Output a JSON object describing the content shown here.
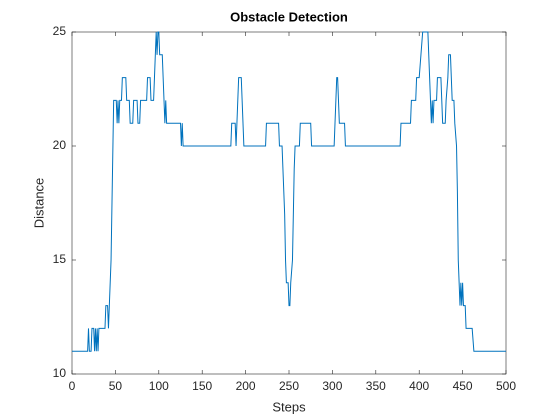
{
  "chart_data": {
    "type": "line",
    "title": "Obstacle Detection",
    "xlabel": "Steps",
    "ylabel": "Distance",
    "xlim": [
      0,
      500
    ],
    "ylim": [
      10,
      25
    ],
    "xticks": [
      0,
      50,
      100,
      150,
      200,
      250,
      300,
      350,
      400,
      450,
      500
    ],
    "yticks": [
      10,
      15,
      20,
      25
    ],
    "series": [
      {
        "color": "#0072bd",
        "x": [
          0,
          18,
          19,
          20,
          22,
          23,
          25,
          26,
          27,
          28,
          29,
          30,
          31,
          38,
          39,
          41,
          42,
          43,
          44,
          45,
          48,
          51,
          52,
          53,
          54,
          55,
          57,
          58,
          62,
          63,
          66,
          67,
          70,
          71,
          75,
          76,
          78,
          79,
          86,
          87,
          90,
          91,
          94,
          95,
          96,
          97,
          98,
          99,
          100,
          101,
          104,
          105,
          106,
          107,
          108,
          109,
          125,
          126,
          127,
          128,
          183,
          184,
          188,
          189,
          190,
          191,
          192,
          195,
          196,
          197,
          198,
          223,
          224,
          238,
          239,
          242,
          243,
          245,
          246,
          247,
          249,
          250,
          251,
          252,
          254,
          255,
          256,
          257,
          262,
          263,
          275,
          276,
          302,
          303,
          304,
          305,
          306,
          307,
          308,
          314,
          315,
          378,
          379,
          390,
          391,
          396,
          397,
          400,
          402,
          404,
          410,
          411,
          412,
          413,
          414,
          415,
          416,
          417,
          420,
          421,
          425,
          426,
          427,
          430,
          431,
          433,
          434,
          436,
          437,
          438,
          440,
          441,
          443,
          444,
          445,
          446,
          447,
          448,
          449,
          450,
          451,
          453,
          454,
          461,
          463,
          500
        ],
        "values": [
          11,
          11,
          12,
          11,
          11,
          12,
          12,
          11,
          12,
          11,
          12,
          11,
          12,
          12,
          13,
          13,
          12,
          13,
          14,
          15,
          22,
          22,
          21,
          22,
          21,
          22,
          22,
          23,
          23,
          22,
          22,
          21,
          21,
          22,
          22,
          21,
          21,
          22,
          22,
          23,
          23,
          22,
          22,
          23,
          24,
          25,
          24,
          25,
          25,
          24,
          24,
          23,
          22,
          21,
          22,
          21,
          21,
          20,
          21,
          20,
          20,
          21,
          21,
          20,
          21,
          22,
          23,
          23,
          22,
          21,
          20,
          20,
          21,
          21,
          20,
          20,
          19,
          17,
          15,
          14,
          14,
          13,
          13,
          14,
          15,
          17,
          19,
          20,
          20,
          21,
          21,
          20,
          20,
          21,
          22,
          23,
          23,
          22,
          21,
          21,
          20,
          20,
          21,
          21,
          22,
          22,
          23,
          23,
          24,
          25,
          25,
          24,
          23,
          22,
          21,
          22,
          21,
          22,
          22,
          23,
          23,
          22,
          21,
          21,
          22,
          23,
          24,
          24,
          23,
          22,
          22,
          21,
          20,
          18,
          15,
          14,
          13,
          14,
          13,
          14,
          13,
          13,
          12,
          12,
          11,
          11
        ]
      }
    ]
  }
}
